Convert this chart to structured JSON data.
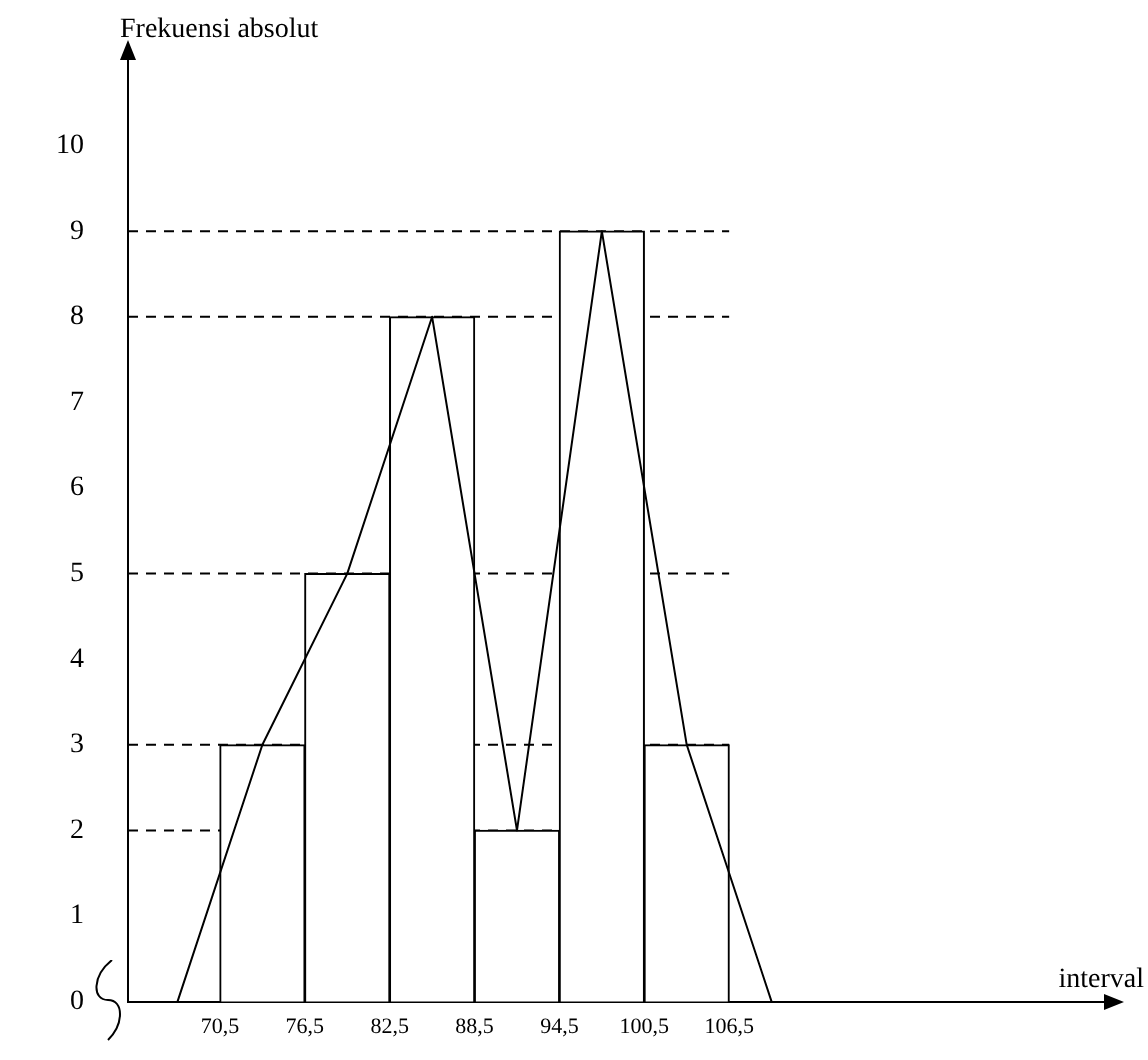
{
  "chart_data": {
    "type": "histogram",
    "ylabel": "Frekuensi absolut",
    "xlabel": "interval",
    "bins": [
      70.5,
      76.5,
      82.5,
      88.5,
      94.5,
      100.5,
      106.5
    ],
    "values": [
      3,
      5,
      8,
      2,
      9,
      3
    ],
    "color": "#ffffff",
    "series": [
      {
        "type": "line",
        "x": [
          67.5,
          73.5,
          79.5,
          85.5,
          91.5,
          97.5,
          103.5,
          109.5
        ],
        "values": [
          0,
          3,
          5,
          8,
          2,
          9,
          3,
          0
        ],
        "color": "#000000"
      }
    ],
    "xlim": [
      64,
      133
    ],
    "ylim": [
      0,
      11
    ],
    "xticks": [
      {
        "value": 70.5,
        "label": "70,5"
      },
      {
        "value": 76.5,
        "label": "76,5"
      },
      {
        "value": 82.5,
        "label": "82,5"
      },
      {
        "value": 88.5,
        "label": "88,5"
      },
      {
        "value": 94.5,
        "label": "94,5"
      },
      {
        "value": 100.5,
        "label": "100,5"
      },
      {
        "value": 106.5,
        "label": "106,5"
      }
    ],
    "yticks": [
      0,
      1,
      2,
      3,
      4,
      5,
      6,
      7,
      8,
      9,
      10
    ],
    "ref_lines": [
      {
        "axis": "y",
        "value": 3,
        "line_style": "dashed"
      },
      {
        "axis": "y",
        "value": 5,
        "line_style": "dashed"
      },
      {
        "axis": "y",
        "value": 8,
        "line_style": "dashed"
      },
      {
        "axis": "y",
        "value": 2,
        "line_style": "dashed"
      },
      {
        "axis": "y",
        "value": 9,
        "line_style": "dashed"
      }
    ],
    "grid": false,
    "legend": false,
    "marker": "none"
  }
}
